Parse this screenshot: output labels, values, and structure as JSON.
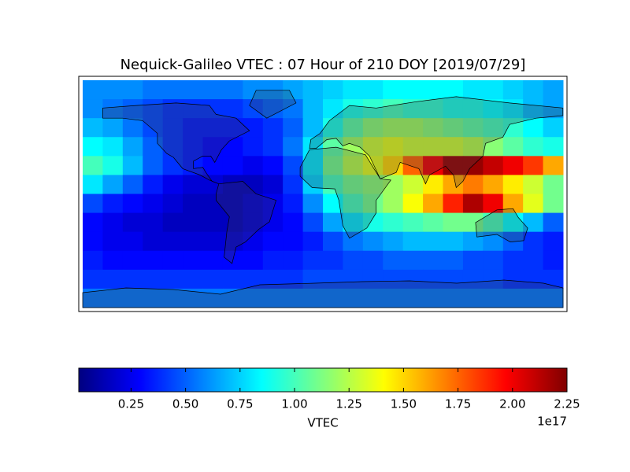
{
  "chart_data": {
    "type": "heatmap",
    "title": "Nequick-Galileo VTEC : 07 Hour of 210 DOY [2019/07/29]",
    "colormap": "jet",
    "colorbar_label": "VTEC",
    "colorbar_offset": "1e17",
    "clim": [
      0.01,
      2.25
    ],
    "cticks": [
      0.25,
      {
        "value": 0.5,
        "label": "0.50"
      },
      0.75,
      {
        "value": 1,
        "label": "1.00"
      },
      1.25,
      {
        "value": 1.5,
        "label": "1.50"
      },
      1.75,
      {
        "value": 2,
        "label": "2.00"
      },
      2.25
    ],
    "values": [
      [
        0.6,
        0.6,
        0.6,
        0.55,
        0.55,
        0.55,
        0.55,
        0.55,
        0.6,
        0.6,
        0.65,
        0.7,
        0.75,
        0.8,
        0.8,
        0.85,
        0.85,
        0.85,
        0.85,
        0.8,
        0.8,
        0.75,
        0.7,
        0.65
      ],
      [
        0.6,
        0.55,
        0.5,
        0.45,
        0.4,
        0.4,
        0.4,
        0.4,
        0.45,
        0.5,
        0.55,
        0.7,
        0.8,
        0.9,
        0.95,
        1.0,
        0.95,
        0.95,
        0.9,
        0.9,
        0.85,
        0.8,
        0.7,
        0.65
      ],
      [
        0.7,
        0.65,
        0.55,
        0.45,
        0.4,
        0.35,
        0.35,
        0.35,
        0.35,
        0.4,
        0.5,
        0.7,
        0.9,
        1.05,
        1.15,
        1.2,
        1.2,
        1.15,
        1.1,
        1.05,
        1.0,
        0.95,
        0.85,
        0.75
      ],
      [
        0.85,
        0.8,
        0.65,
        0.5,
        0.4,
        0.35,
        0.3,
        0.3,
        0.35,
        0.4,
        0.55,
        0.8,
        1.05,
        1.2,
        1.3,
        1.35,
        1.3,
        1.3,
        1.3,
        1.25,
        1.15,
        1.05,
        0.95,
        0.9
      ],
      [
        1.0,
        0.9,
        0.7,
        0.5,
        0.4,
        0.35,
        0.3,
        0.3,
        0.25,
        0.3,
        0.45,
        0.8,
        1.1,
        1.25,
        1.35,
        1.5,
        1.75,
        2.0,
        2.2,
        2.2,
        2.1,
        2.0,
        1.85,
        1.6
      ],
      [
        0.8,
        0.65,
        0.5,
        0.35,
        0.25,
        0.2,
        0.2,
        0.15,
        0.15,
        0.2,
        0.4,
        0.75,
        1.0,
        1.1,
        1.15,
        1.2,
        1.3,
        1.45,
        1.6,
        1.7,
        1.6,
        1.45,
        1.3,
        1.1
      ],
      [
        0.45,
        0.35,
        0.3,
        0.25,
        0.2,
        0.15,
        0.15,
        0.15,
        0.2,
        0.25,
        0.35,
        0.6,
        0.85,
        1.0,
        1.1,
        1.2,
        1.4,
        1.6,
        1.9,
        2.15,
        2.0,
        1.6,
        1.35,
        1.1
      ],
      [
        0.3,
        0.25,
        0.2,
        0.2,
        0.15,
        0.15,
        0.15,
        0.15,
        0.2,
        0.25,
        0.3,
        0.45,
        0.65,
        0.8,
        0.9,
        0.95,
        1.0,
        1.05,
        1.1,
        1.1,
        1.0,
        0.85,
        0.7,
        0.5
      ],
      [
        0.3,
        0.25,
        0.25,
        0.2,
        0.2,
        0.2,
        0.2,
        0.2,
        0.25,
        0.3,
        0.3,
        0.35,
        0.45,
        0.55,
        0.6,
        0.65,
        0.7,
        0.7,
        0.7,
        0.65,
        0.6,
        0.5,
        0.4,
        0.35
      ],
      [
        0.35,
        0.3,
        0.3,
        0.3,
        0.3,
        0.3,
        0.3,
        0.3,
        0.3,
        0.35,
        0.35,
        0.4,
        0.4,
        0.45,
        0.45,
        0.5,
        0.5,
        0.5,
        0.5,
        0.45,
        0.45,
        0.4,
        0.4,
        0.35
      ],
      [
        0.4,
        0.4,
        0.4,
        0.4,
        0.4,
        0.4,
        0.4,
        0.4,
        0.4,
        0.4,
        0.4,
        0.45,
        0.45,
        0.45,
        0.45,
        0.45,
        0.45,
        0.45,
        0.45,
        0.45,
        0.45,
        0.4,
        0.4,
        0.4
      ],
      [
        0.55,
        0.55,
        0.55,
        0.55,
        0.55,
        0.55,
        0.55,
        0.55,
        0.55,
        0.55,
        0.55,
        0.55,
        0.55,
        0.55,
        0.55,
        0.55,
        0.55,
        0.55,
        0.55,
        0.55,
        0.55,
        0.55,
        0.55,
        0.55
      ]
    ]
  }
}
